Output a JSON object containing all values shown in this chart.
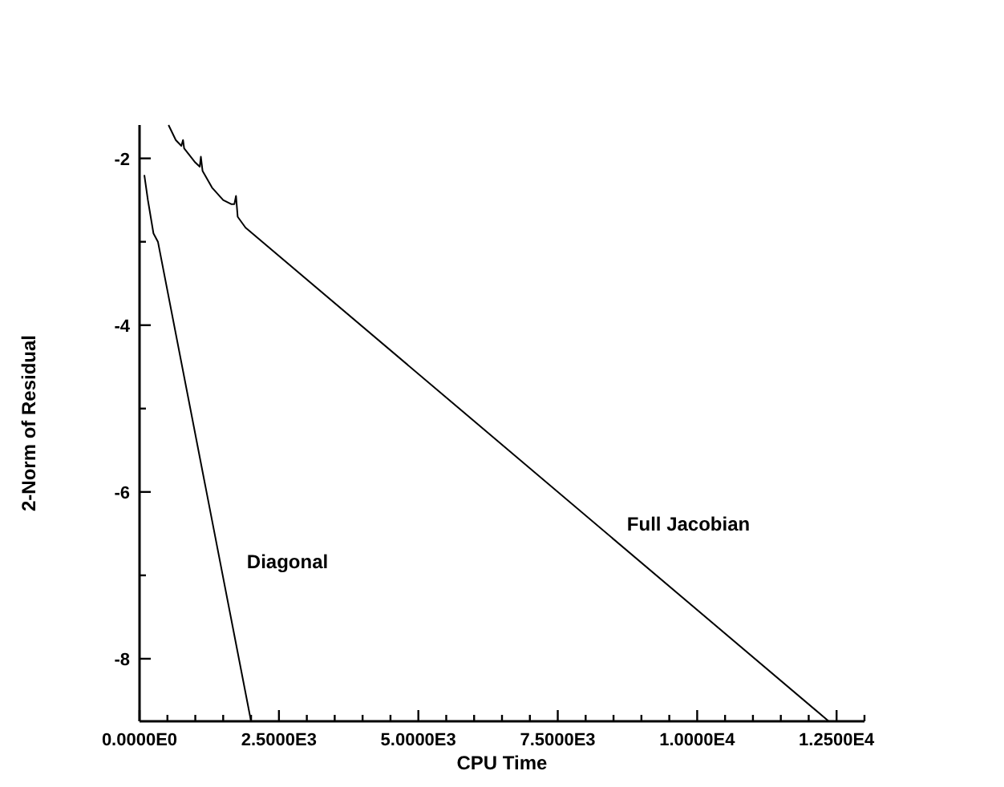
{
  "chart_data": {
    "type": "line",
    "xlabel": "CPU Time",
    "ylabel": "2-Norm of Residual",
    "xlim": [
      0,
      13000
    ],
    "ylim": [
      -8.75,
      -1.6
    ],
    "xticks": [
      {
        "value": 0,
        "label": "0.0000E0"
      },
      {
        "value": 500,
        "label": null
      },
      {
        "value": 1000,
        "label": null
      },
      {
        "value": 1500,
        "label": null
      },
      {
        "value": 2000,
        "label": null
      },
      {
        "value": 2500,
        "label": "2.5000E3"
      },
      {
        "value": 3000,
        "label": null
      },
      {
        "value": 3500,
        "label": null
      },
      {
        "value": 4000,
        "label": null
      },
      {
        "value": 4500,
        "label": null
      },
      {
        "value": 5000,
        "label": "5.0000E3"
      },
      {
        "value": 5500,
        "label": null
      },
      {
        "value": 6000,
        "label": null
      },
      {
        "value": 6500,
        "label": null
      },
      {
        "value": 7000,
        "label": null
      },
      {
        "value": 7500,
        "label": "7.5000E3"
      },
      {
        "value": 8000,
        "label": null
      },
      {
        "value": 8500,
        "label": null
      },
      {
        "value": 9000,
        "label": null
      },
      {
        "value": 9500,
        "label": null
      },
      {
        "value": 10000,
        "label": "1.0000E4"
      },
      {
        "value": 10500,
        "label": null
      },
      {
        "value": 11000,
        "label": null
      },
      {
        "value": 11500,
        "label": null
      },
      {
        "value": 12000,
        "label": null
      },
      {
        "value": 12500,
        "label": "1.2500E4"
      },
      {
        "value": 13000,
        "label": null
      }
    ],
    "yticks": [
      -2,
      {
        "value": -3,
        "label": null
      },
      -4,
      {
        "value": -5,
        "label": null
      },
      -6,
      {
        "value": -7,
        "label": null
      },
      -8
    ],
    "grid": false,
    "legend": false,
    "marker": "none",
    "line_style": "solid",
    "series": [
      {
        "name": "Diagonal",
        "color": "#000000",
        "x": [
          86,
          150,
          250,
          330,
          2000
        ],
        "values": [
          -2.2,
          -2.5,
          -2.9,
          -3.0,
          -8.75
        ]
      },
      {
        "name": "Full Jacobian",
        "color": "#000000",
        "x": [
          520,
          650,
          750,
          780,
          800,
          1000,
          1080,
          1100,
          1130,
          1300,
          1500,
          1650,
          1700,
          1730,
          1760,
          1900,
          12360
        ],
        "values": [
          -1.6,
          -1.78,
          -1.85,
          -1.78,
          -1.88,
          -2.05,
          -2.1,
          -1.98,
          -2.15,
          -2.35,
          -2.5,
          -2.55,
          -2.55,
          -2.45,
          -2.7,
          -2.83,
          -8.75
        ]
      }
    ]
  }
}
